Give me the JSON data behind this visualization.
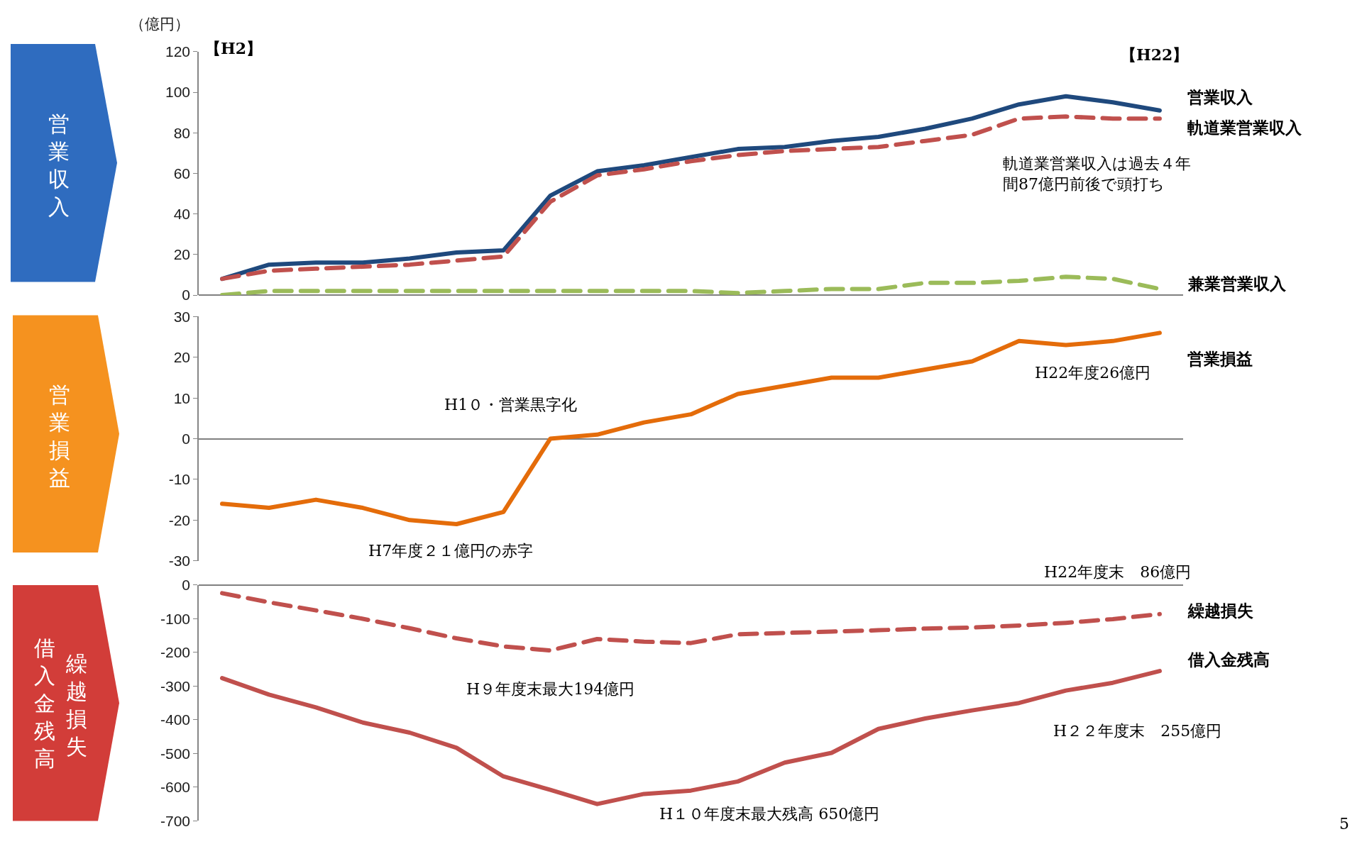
{
  "chart_data": [
    {
      "type": "line",
      "title": "営業収入",
      "ylabel": "（億円）",
      "categories": [
        null,
        null,
        null,
        null,
        null,
        null,
        null,
        null,
        null,
        null,
        null,
        null,
        null,
        null,
        null,
        null,
        null,
        null,
        null,
        null,
        null
      ],
      "line_style": "solid",
      "tick_labels": "y",
      "ylim": [
        0,
        120
      ],
      "yticks": [
        0,
        20,
        40,
        60,
        80,
        100,
        120
      ],
      "series": [
        {
          "name": "営業収入",
          "color": "#1f497d",
          "values": [
            8,
            15,
            16,
            16,
            18,
            21,
            22,
            49,
            61,
            64,
            68,
            72,
            73,
            76,
            78,
            82,
            87,
            94,
            98,
            95,
            91
          ]
        },
        {
          "name": "軌道業営業収入",
          "color": "#c0504d",
          "line_style": "dashed",
          "values": [
            8,
            12,
            13,
            14,
            15,
            17,
            19,
            46,
            59,
            62,
            66,
            69,
            71,
            72,
            73,
            76,
            79,
            87,
            88,
            87,
            87
          ]
        },
        {
          "name": "兼業営業収入",
          "color": "#9bbb59",
          "line_style": "dashed",
          "values": [
            0,
            2,
            2,
            2,
            2,
            2,
            2,
            2,
            2,
            2,
            2,
            1,
            2,
            3,
            3,
            6,
            6,
            7,
            9,
            8,
            3
          ]
        }
      ],
      "annotations": [
        "【H2】",
        "【H22】",
        "軌道業営業収入は過去４年間87億円前後で頭打ち"
      ]
    },
    {
      "type": "line",
      "title": "営業損益",
      "categories": [
        null,
        null,
        null,
        null,
        null,
        null,
        null,
        null,
        null,
        null,
        null,
        null,
        null,
        null,
        null,
        null,
        null,
        null,
        null,
        null,
        null
      ],
      "line_style": "solid",
      "tick_labels": "y",
      "ylim": [
        -30,
        30
      ],
      "yticks": [
        -30,
        -20,
        -10,
        0,
        10,
        20,
        30
      ],
      "series": [
        {
          "name": "営業損益",
          "color": "#e46c0a",
          "values": [
            -16,
            -17,
            -15,
            -17,
            -20,
            -21,
            -18,
            0,
            1,
            4,
            6,
            11,
            13,
            15,
            15,
            17,
            19,
            24,
            23,
            24,
            26
          ]
        }
      ],
      "annotations": [
        "H1０・営業黒字化",
        "H7年度２１億円の赤字",
        "H22年度26億円"
      ]
    },
    {
      "type": "line",
      "title": "繰越損失",
      "subtitle": "借入金残高",
      "categories": [
        null,
        null,
        null,
        null,
        null,
        null,
        null,
        null,
        null,
        null,
        null,
        null,
        null,
        null,
        null,
        null,
        null,
        null,
        null,
        null,
        null
      ],
      "line_style": "solid",
      "tick_labels": "y",
      "ylim": [
        -700,
        0
      ],
      "yticks": [
        -700,
        -600,
        -500,
        -400,
        -300,
        -200,
        -100,
        0
      ],
      "series": [
        {
          "name": "繰越損失",
          "color": "#c0504d",
          "line_style": "dashed",
          "values": [
            -24,
            -51,
            -75,
            -100,
            -128,
            -158,
            -182,
            -194,
            -160,
            -168,
            -172,
            -146,
            -142,
            -138,
            -134,
            -129,
            -126,
            -120,
            -112,
            -101,
            -86
          ]
        },
        {
          "name": "借入金残高",
          "color": "#c0504d",
          "values": [
            -276,
            -325,
            -363,
            -408,
            -438,
            -483,
            -568,
            -608,
            -650,
            -620,
            -610,
            -583,
            -527,
            -498,
            -427,
            -396,
            -372,
            -350,
            -313,
            -290,
            -255
          ]
        }
      ],
      "annotations": [
        "H22年度末　86億円",
        "H９年度末最大194億円",
        "H１０年度末最大残高 650億円",
        "H２２年度末　255億円",
        "5"
      ]
    }
  ]
}
